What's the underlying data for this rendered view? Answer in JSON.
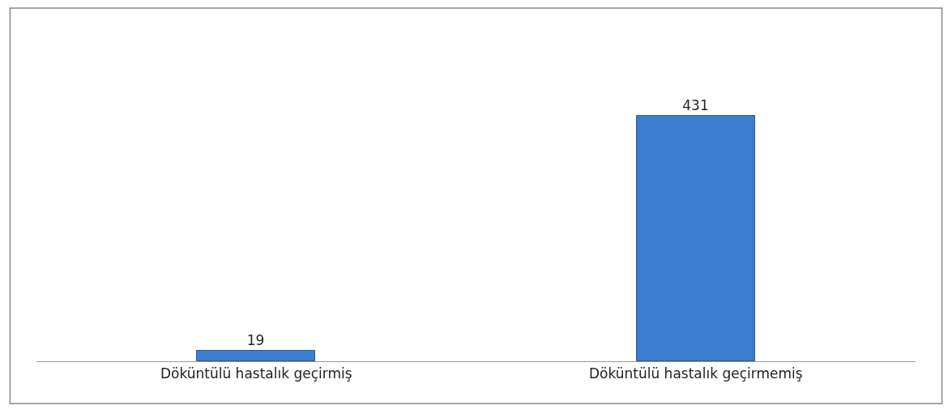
{
  "chart_data": {
    "type": "bar",
    "categories": [
      "Döküntülü hastalık geçirmiş",
      "Döküntülü hastalık geçirmemiş"
    ],
    "values": [
      19,
      431
    ],
    "color": "#3b7dd0",
    "ylim": [
      0,
      620
    ],
    "data_labels": true,
    "tick_labels": "x",
    "grid": false,
    "legend": false
  }
}
